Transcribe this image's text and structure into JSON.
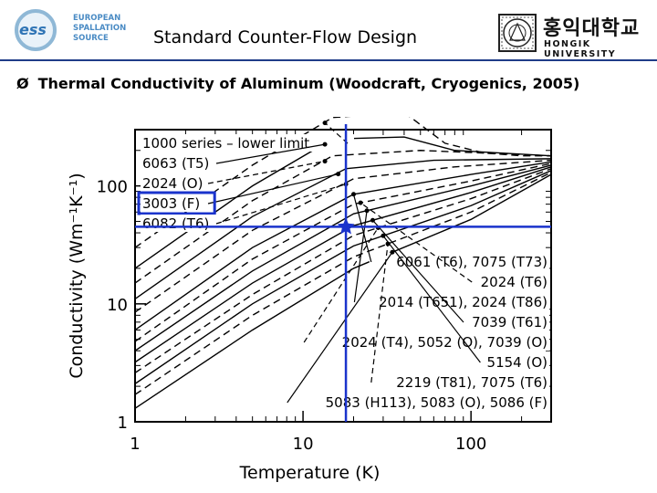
{
  "header": {
    "logo_left": {
      "name": "ess-logo",
      "letters": "ess",
      "lines": [
        "EUROPEAN",
        "SPALLATION",
        "SOURCE"
      ]
    },
    "title": "Standard Counter-Flow Design",
    "logo_right": {
      "korean": "홍익대학교",
      "english": "HONGIK UNIVERSITY",
      "icon": "university-seal"
    }
  },
  "bullet": {
    "marker": "Ø",
    "text": "Thermal Conductivity of Aluminum (Woodcraft, Cryogenics, 2005)"
  },
  "colors": {
    "rule": "#1f3c88",
    "highlight": "#1a33cc",
    "ess_blue": "#4a8bc4"
  },
  "chart_data": {
    "type": "line",
    "xscale": "log",
    "yscale": "log",
    "xlim": [
      1,
      300
    ],
    "ylim": [
      1,
      300
    ],
    "xlabel": "Temperature (K)",
    "ylabel": "Conductivity (Wm⁻¹K⁻¹)",
    "xticks": [
      "1",
      "10",
      "100"
    ],
    "yticks": [
      "1",
      "10",
      "100"
    ],
    "grid": true,
    "series": [
      {
        "label": "1000 series – lower limit",
        "dash": true,
        "points": [
          [
            1,
            30
          ],
          [
            5,
            150
          ],
          [
            15,
            380
          ],
          [
            40,
            420
          ],
          [
            70,
            230
          ],
          [
            120,
            190
          ],
          [
            200,
            180
          ],
          [
            300,
            180
          ]
        ]
      },
      {
        "label": "6063 (T5)",
        "dash": false,
        "points": [
          [
            1,
            20
          ],
          [
            5,
            100
          ],
          [
            15,
            250
          ],
          [
            40,
            260
          ],
          [
            80,
            200
          ],
          [
            300,
            180
          ]
        ]
      },
      {
        "label": "2024 (O)",
        "dash": true,
        "points": [
          [
            1,
            15
          ],
          [
            5,
            75
          ],
          [
            15,
            180
          ],
          [
            50,
            200
          ],
          [
            300,
            180
          ]
        ]
      },
      {
        "label": "3003 (F)",
        "dash": false,
        "points": [
          [
            1,
            11
          ],
          [
            5,
            55
          ],
          [
            18,
            140
          ],
          [
            60,
            165
          ],
          [
            300,
            170
          ]
        ]
      },
      {
        "label": "6082 (T6)",
        "dash": true,
        "points": [
          [
            1,
            8.5
          ],
          [
            5,
            42
          ],
          [
            20,
            115
          ],
          [
            80,
            145
          ],
          [
            300,
            165
          ]
        ]
      },
      {
        "label": "6061 (T6), 7075 (T73)",
        "dash": false,
        "points": [
          [
            1,
            6
          ],
          [
            5,
            30
          ],
          [
            20,
            85
          ],
          [
            100,
            125
          ],
          [
            300,
            160
          ]
        ]
      },
      {
        "label": "2024 (T6)",
        "dash": true,
        "points": [
          [
            1,
            4.8
          ],
          [
            5,
            24
          ],
          [
            20,
            70
          ],
          [
            100,
            110
          ],
          [
            300,
            155
          ]
        ]
      },
      {
        "label": "2014 (T651), 2024 (T86)",
        "dash": false,
        "points": [
          [
            1,
            4
          ],
          [
            5,
            19
          ],
          [
            20,
            58
          ],
          [
            100,
            100
          ],
          [
            300,
            150
          ]
        ]
      },
      {
        "label": "7039 (T61)",
        "dash": false,
        "points": [
          [
            1,
            3.2
          ],
          [
            5,
            15
          ],
          [
            20,
            46
          ],
          [
            100,
            88
          ],
          [
            300,
            145
          ]
        ]
      },
      {
        "label": "2024 (T4), 5052 (O), 7039 (O)",
        "dash": true,
        "points": [
          [
            1,
            2.6
          ],
          [
            5,
            12
          ],
          [
            20,
            38
          ],
          [
            100,
            78
          ],
          [
            300,
            140
          ]
        ]
      },
      {
        "label": "5154 (O)",
        "dash": false,
        "points": [
          [
            1,
            2.1
          ],
          [
            5,
            10
          ],
          [
            20,
            31
          ],
          [
            100,
            68
          ],
          [
            300,
            135
          ]
        ]
      },
      {
        "label": "2219 (T81), 7075 (T6)",
        "dash": true,
        "points": [
          [
            1,
            1.7
          ],
          [
            5,
            8
          ],
          [
            20,
            25
          ],
          [
            100,
            60
          ],
          [
            300,
            130
          ]
        ]
      },
      {
        "label": "5083 (H113), 5083 (O), 5086 (F)",
        "dash": false,
        "points": [
          [
            1,
            1.3
          ],
          [
            5,
            6
          ],
          [
            20,
            20
          ],
          [
            100,
            52
          ],
          [
            300,
            125
          ]
        ]
      }
    ],
    "marker": {
      "shape": "star",
      "x": 18,
      "y": 45
    },
    "crosshair": {
      "x": 18,
      "y": 45
    },
    "highlighted_label": "3003 (F)"
  }
}
